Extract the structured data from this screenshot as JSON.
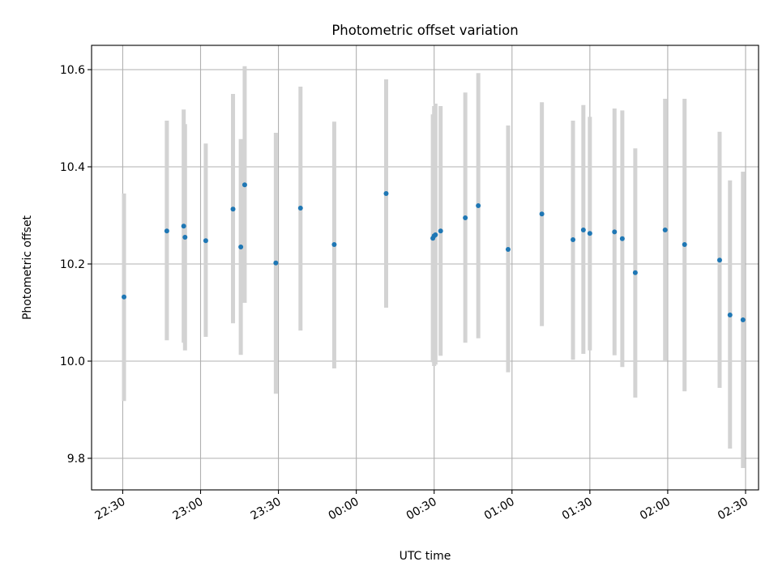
{
  "chart_data": {
    "type": "scatter",
    "title": "Photometric offset variation",
    "xlabel": "UTC time",
    "ylabel": "Photometric offset",
    "grid": true,
    "xlim": [
      "22:18",
      "02:35"
    ],
    "ylim": [
      9.735,
      10.65
    ],
    "x_ticks": [
      "22:30",
      "23:00",
      "23:30",
      "00:00",
      "00:30",
      "01:00",
      "01:30",
      "02:00",
      "02:30"
    ],
    "y_ticks": [
      "9.8",
      "10.0",
      "10.2",
      "10.4",
      "10.6"
    ],
    "colors": {
      "point": "#1f77b4",
      "errorbar": "#d3d3d3",
      "grid": "#b0b0b0"
    },
    "points": [
      {
        "x": "22:30:30",
        "y": 10.132,
        "lo": 9.918,
        "hi": 10.345
      },
      {
        "x": "22:47:00",
        "y": 10.268,
        "lo": 10.043,
        "hi": 10.495
      },
      {
        "x": "22:53:30",
        "y": 10.278,
        "lo": 10.038,
        "hi": 10.518
      },
      {
        "x": "22:54:00",
        "y": 10.255,
        "lo": 10.022,
        "hi": 10.488
      },
      {
        "x": "23:02:00",
        "y": 10.248,
        "lo": 10.05,
        "hi": 10.448
      },
      {
        "x": "23:12:30",
        "y": 10.313,
        "lo": 10.078,
        "hi": 10.55
      },
      {
        "x": "23:15:30",
        "y": 10.235,
        "lo": 10.013,
        "hi": 10.457
      },
      {
        "x": "23:17:00",
        "y": 10.363,
        "lo": 10.12,
        "hi": 10.607
      },
      {
        "x": "23:29:00",
        "y": 10.202,
        "lo": 9.933,
        "hi": 10.47
      },
      {
        "x": "23:38:30",
        "y": 10.315,
        "lo": 10.063,
        "hi": 10.565
      },
      {
        "x": "23:51:30",
        "y": 10.24,
        "lo": 9.985,
        "hi": 10.493
      },
      {
        "x": "00:11:30",
        "y": 10.345,
        "lo": 10.11,
        "hi": 10.58
      },
      {
        "x": "00:29:30",
        "y": 10.253,
        "lo": 9.998,
        "hi": 10.508
      },
      {
        "x": "00:30:00",
        "y": 10.258,
        "lo": 9.99,
        "hi": 10.525
      },
      {
        "x": "00:30:30",
        "y": 10.26,
        "lo": 9.993,
        "hi": 10.53
      },
      {
        "x": "00:32:30",
        "y": 10.268,
        "lo": 10.011,
        "hi": 10.525
      },
      {
        "x": "00:42:00",
        "y": 10.295,
        "lo": 10.038,
        "hi": 10.553
      },
      {
        "x": "00:47:00",
        "y": 10.32,
        "lo": 10.047,
        "hi": 10.593
      },
      {
        "x": "00:58:30",
        "y": 10.23,
        "lo": 9.977,
        "hi": 10.485
      },
      {
        "x": "01:11:30",
        "y": 10.303,
        "lo": 10.072,
        "hi": 10.533
      },
      {
        "x": "01:23:30",
        "y": 10.25,
        "lo": 10.003,
        "hi": 10.495
      },
      {
        "x": "01:27:30",
        "y": 10.27,
        "lo": 10.015,
        "hi": 10.527
      },
      {
        "x": "01:30:00",
        "y": 10.263,
        "lo": 10.022,
        "hi": 10.503
      },
      {
        "x": "01:39:30",
        "y": 10.266,
        "lo": 10.012,
        "hi": 10.52
      },
      {
        "x": "01:42:30",
        "y": 10.252,
        "lo": 9.988,
        "hi": 10.516
      },
      {
        "x": "01:47:30",
        "y": 10.182,
        "lo": 9.925,
        "hi": 10.438
      },
      {
        "x": "01:59:00",
        "y": 10.27,
        "lo": 10.0,
        "hi": 10.54
      },
      {
        "x": "02:06:30",
        "y": 10.24,
        "lo": 9.938,
        "hi": 10.54
      },
      {
        "x": "02:20:00",
        "y": 10.208,
        "lo": 9.945,
        "hi": 10.472
      },
      {
        "x": "02:24:00",
        "y": 10.095,
        "lo": 9.82,
        "hi": 10.372
      },
      {
        "x": "02:29:00",
        "y": 10.085,
        "lo": 9.78,
        "hi": 10.39
      }
    ]
  }
}
